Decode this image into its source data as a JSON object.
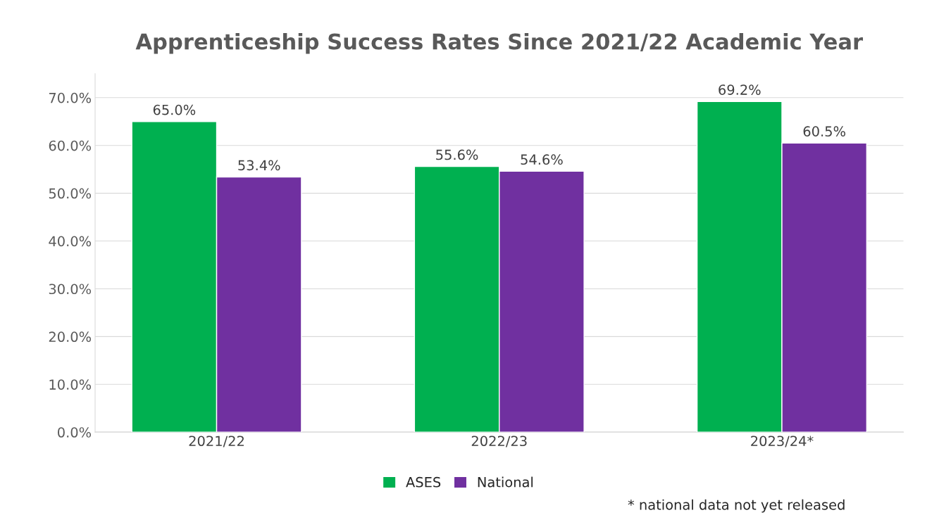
{
  "chart_data": {
    "type": "bar",
    "title": "Apprenticeship Success Rates Since 2021/22 Academic Year",
    "categories": [
      "2021/22",
      "2022/23",
      "2023/24*"
    ],
    "series": [
      {
        "name": "ASES",
        "color": "#00b050",
        "values": [
          65.0,
          55.6,
          69.2
        ],
        "value_labels": [
          "65.0%",
          "55.6%",
          "69.2%"
        ]
      },
      {
        "name": "National",
        "color": "#7030a0",
        "values": [
          53.4,
          54.6,
          60.5
        ],
        "value_labels": [
          "53.4%",
          "54.6%",
          "60.5%"
        ]
      }
    ],
    "ylim": [
      0,
      75
    ],
    "yticks": [
      {
        "value": 0,
        "label": "0.0%"
      },
      {
        "value": 10,
        "label": "10.0%"
      },
      {
        "value": 20,
        "label": "20.0%"
      },
      {
        "value": 30,
        "label": "30.0%"
      },
      {
        "value": 40,
        "label": "40.0%"
      },
      {
        "value": 50,
        "label": "50.0%"
      },
      {
        "value": 60,
        "label": "60.0%"
      },
      {
        "value": 70,
        "label": "70.0%"
      }
    ],
    "grid": "y",
    "legend": "bottom",
    "annotations": [
      "* national data not yet released"
    ]
  }
}
